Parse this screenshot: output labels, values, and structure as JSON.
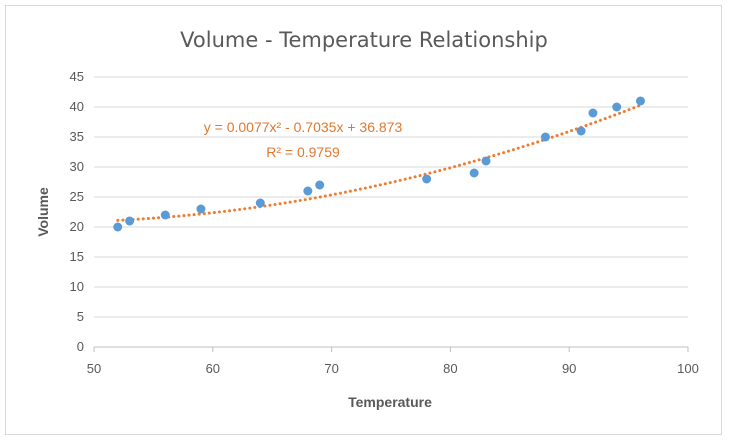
{
  "chart_data": {
    "type": "scatter",
    "title": "Volume - Temperature Relationship",
    "xlabel": "Temperature",
    "ylabel": "Volume",
    "xlim": [
      50,
      100
    ],
    "ylim": [
      0,
      45
    ],
    "xticks": [
      "50",
      "60",
      "70",
      "80",
      "90",
      "100"
    ],
    "yticks": [
      "0",
      "5",
      "10",
      "15",
      "20",
      "25",
      "30",
      "35",
      "40",
      "45"
    ],
    "grid": true,
    "series": [
      {
        "x": [
          52,
          53,
          56,
          59,
          64,
          68,
          69,
          78,
          82,
          83,
          88,
          91,
          92,
          94,
          96
        ],
        "y": [
          20,
          21,
          22,
          23,
          24,
          26,
          27,
          28,
          29,
          31,
          35,
          36,
          39,
          40,
          41
        ],
        "color": "#5b9bd5"
      }
    ],
    "trendline": {
      "type": "polynomial",
      "order": 2,
      "coefficients": [
        0.0077,
        -0.7035,
        36.873
      ],
      "color": "#ed7d31",
      "style": "dotted",
      "equation_text": "y = 0.0077x² - 0.7035x + 36.873",
      "r2_text": "R² = 0.9759"
    }
  }
}
